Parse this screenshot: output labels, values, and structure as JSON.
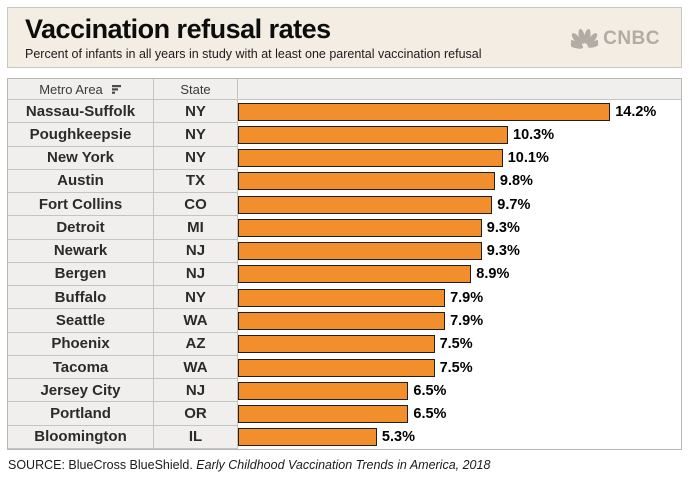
{
  "header": {
    "title": "Vaccination refusal rates",
    "subtitle": "Percent of infants in all years in study with at least one parental vaccination refusal",
    "logo_text": "CNBC"
  },
  "table": {
    "columns": [
      {
        "label": "Metro Area"
      },
      {
        "label": "State"
      }
    ]
  },
  "chart_data": {
    "type": "bar",
    "orientation": "horizontal",
    "title": "Vaccination refusal rates",
    "subtitle": "Percent of infants in all years in study with at least one parental vaccination refusal",
    "value_unit": "%",
    "xlim": [
      0,
      16.9
    ],
    "grid": false,
    "legend": false,
    "rows": [
      {
        "metro": "Nassau-Suffolk",
        "state": "NY",
        "value": 14.2,
        "label": "14.2%"
      },
      {
        "metro": "Poughkeepsie",
        "state": "NY",
        "value": 10.3,
        "label": "10.3%"
      },
      {
        "metro": "New York",
        "state": "NY",
        "value": 10.1,
        "label": "10.1%"
      },
      {
        "metro": "Austin",
        "state": "TX",
        "value": 9.8,
        "label": "9.8%"
      },
      {
        "metro": "Fort Collins",
        "state": "CO",
        "value": 9.7,
        "label": "9.7%"
      },
      {
        "metro": "Detroit",
        "state": "MI",
        "value": 9.3,
        "label": "9.3%"
      },
      {
        "metro": "Newark",
        "state": "NJ",
        "value": 9.3,
        "label": "9.3%"
      },
      {
        "metro": "Bergen",
        "state": "NJ",
        "value": 8.9,
        "label": "8.9%"
      },
      {
        "metro": "Buffalo",
        "state": "NY",
        "value": 7.9,
        "label": "7.9%"
      },
      {
        "metro": "Seattle",
        "state": "WA",
        "value": 7.9,
        "label": "7.9%"
      },
      {
        "metro": "Phoenix",
        "state": "AZ",
        "value": 7.5,
        "label": "7.5%"
      },
      {
        "metro": "Tacoma",
        "state": "WA",
        "value": 7.5,
        "label": "7.5%"
      },
      {
        "metro": "Jersey City",
        "state": "NJ",
        "value": 6.5,
        "label": "6.5%"
      },
      {
        "metro": "Portland",
        "state": "OR",
        "value": 6.5,
        "label": "6.5%"
      },
      {
        "metro": "Bloomington",
        "state": "IL",
        "value": 5.3,
        "label": "5.3%"
      }
    ]
  },
  "source": {
    "prefix": "SOURCE: BlueCross BlueShield. ",
    "citation": "Early Childhood Vaccination Trends in America, 2018"
  },
  "icons": {
    "sort": "sort-descending-icon",
    "logo": "cnbc-peacock-icon"
  },
  "colors": {
    "bar": "#f28e2b",
    "bar_border": "#1f1f1f",
    "title_card_bg": "#f3ede3",
    "cell_bg": "#f0efee",
    "cell_border": "#c6c4c1",
    "logo_gray": "#b3aca4",
    "value_text": "#000000"
  }
}
